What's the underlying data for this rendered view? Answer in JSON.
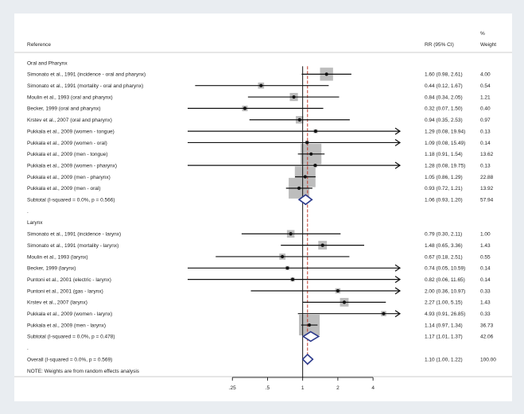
{
  "chart_data": {
    "type": "forest",
    "header": {
      "reference": "Reference",
      "rr": "RR (95% CI)",
      "pct": "%",
      "weight": "Weight"
    },
    "x_ticks": [
      ".25",
      ".5",
      "1",
      "2",
      "4"
    ],
    "x_tick_values": [
      0.25,
      0.5,
      1,
      2,
      4
    ],
    "x_range": [
      0.125,
      6
    ],
    "null_value": 1,
    "overall_rr": 1.1,
    "rows": [
      {
        "kind": "group",
        "label": "Oral and Pharynx"
      },
      {
        "kind": "study",
        "label": "Simonato et al., 1991 (incidence - oral and pharynx)",
        "rr": 1.6,
        "lo": 0.98,
        "hi": 2.61,
        "ci": "1.60 (0.98, 2.61)",
        "weight": "4.00",
        "w": 4.0
      },
      {
        "kind": "study",
        "label": "Simonato et al., 1991 (mortality - oral and pharynx)",
        "rr": 0.44,
        "lo": 0.12,
        "hi": 1.67,
        "ci": "0.44 (0.12, 1.67)",
        "weight": "0.54",
        "w": 0.54
      },
      {
        "kind": "study",
        "label": "Moulin et al., 1993 (oral and pharynx)",
        "rr": 0.84,
        "lo": 0.34,
        "hi": 2.05,
        "ci": "0.84 (0.34, 2.05)",
        "weight": "1.21",
        "w": 1.21
      },
      {
        "kind": "study",
        "label": "Becker, 1999 (oral and pharynx)",
        "rr": 0.32,
        "lo": 0.07,
        "hi": 1.5,
        "ci": "0.32 (0.07, 1.50)",
        "weight": "0.40",
        "w": 0.4
      },
      {
        "kind": "study",
        "label": "Krstev et al., 2007 (oral and pharynx)",
        "rr": 0.94,
        "lo": 0.35,
        "hi": 2.53,
        "ci": "0.94 (0.35, 2.53)",
        "weight": "0.97",
        "w": 0.97
      },
      {
        "kind": "study",
        "label": "Pukkala et al., 2009 (women - tongue)",
        "rr": 1.29,
        "lo": 0.08,
        "hi": 19.94,
        "ci": "1.29 (0.08, 19.94)",
        "weight": "0.13",
        "w": 0.13
      },
      {
        "kind": "study",
        "label": "Pukkala et al., 2009 (women - oral)",
        "rr": 1.09,
        "lo": 0.08,
        "hi": 15.49,
        "ci": "1.09 (0.08, 15.49)",
        "weight": "0.14",
        "w": 0.14
      },
      {
        "kind": "study",
        "label": "Pukkala et al., 2009 (men - tongue)",
        "rr": 1.18,
        "lo": 0.91,
        "hi": 1.54,
        "ci": "1.18 (0.91, 1.54)",
        "weight": "13.62",
        "w": 13.62
      },
      {
        "kind": "study",
        "label": "Pukkala et al., 2009 (women - pharynx)",
        "rr": 1.28,
        "lo": 0.08,
        "hi": 19.75,
        "ci": "1.28 (0.08, 19.75)",
        "weight": "0.13",
        "w": 0.13
      },
      {
        "kind": "study",
        "label": "Pukkala et al., 2009 (men - pharynx)",
        "rr": 1.05,
        "lo": 0.86,
        "hi": 1.29,
        "ci": "1.05 (0.86, 1.29)",
        "weight": "22.88",
        "w": 22.88
      },
      {
        "kind": "study",
        "label": "Pukkala et al., 2009 (men - oral)",
        "rr": 0.93,
        "lo": 0.72,
        "hi": 1.21,
        "ci": "0.93 (0.72, 1.21)",
        "weight": "13.92",
        "w": 13.92
      },
      {
        "kind": "subtotal",
        "label": "Subtotal  (I-squared = 0.0%, p = 0.566)",
        "rr": 1.06,
        "lo": 0.93,
        "hi": 1.2,
        "ci": "1.06 (0.93, 1.20)",
        "weight": "57.94"
      },
      {
        "kind": "dot",
        "label": "."
      },
      {
        "kind": "group",
        "label": "Larynx"
      },
      {
        "kind": "study",
        "label": "Simonato et al., 1991 (incidence - larynx)",
        "rr": 0.79,
        "lo": 0.3,
        "hi": 2.11,
        "ci": "0.79 (0.30, 2.11)",
        "weight": "1.00",
        "w": 1.0
      },
      {
        "kind": "study",
        "label": "Simonato et al., 1991 (mortality - larynx)",
        "rr": 1.48,
        "lo": 0.65,
        "hi": 3.36,
        "ci": "1.48 (0.65, 3.36)",
        "weight": "1.43",
        "w": 1.43
      },
      {
        "kind": "study",
        "label": "Moulin et al., 1993 (larynx)",
        "rr": 0.67,
        "lo": 0.18,
        "hi": 2.51,
        "ci": "0.67 (0.18, 2.51)",
        "weight": "0.55",
        "w": 0.55
      },
      {
        "kind": "study",
        "label": "Becker, 1999 (larynx)",
        "rr": 0.74,
        "lo": 0.05,
        "hi": 10.59,
        "ci": "0.74 (0.05, 10.59)",
        "weight": "0.14",
        "w": 0.14
      },
      {
        "kind": "study",
        "label": "Puntoni et al., 2001 (electric - larynx)",
        "rr": 0.82,
        "lo": 0.06,
        "hi": 11.65,
        "ci": "0.82 (0.06, 11.65)",
        "weight": "0.14",
        "w": 0.14
      },
      {
        "kind": "study",
        "label": "Puntoni et al., 2001 (gas - larynx)",
        "rr": 2.0,
        "lo": 0.36,
        "hi": 10.97,
        "ci": "2.00 (0.36, 10.97)",
        "weight": "0.33",
        "w": 0.33
      },
      {
        "kind": "study",
        "label": "Krstev et al., 2007 (larynx)",
        "rr": 2.27,
        "lo": 1.0,
        "hi": 5.15,
        "ci": "2.27 (1.00, 5.15)",
        "weight": "1.43",
        "w": 1.43
      },
      {
        "kind": "study",
        "label": "Pukkala et al., 2009 (women - larynx)",
        "rr": 4.93,
        "lo": 0.91,
        "hi": 26.85,
        "ci": "4.93 (0.91, 26.85)",
        "weight": "0.33",
        "w": 0.33
      },
      {
        "kind": "study",
        "label": "Pukkala et al., 2009 (men - larynx)",
        "rr": 1.14,
        "lo": 0.97,
        "hi": 1.34,
        "ci": "1.14 (0.97, 1.34)",
        "weight": "36.73",
        "w": 36.73
      },
      {
        "kind": "subtotal",
        "label": "Subtotal  (I-squared = 0.0%, p = 0.478)",
        "rr": 1.17,
        "lo": 1.01,
        "hi": 1.37,
        "ci": "1.17 (1.01, 1.37)",
        "weight": "42.06"
      },
      {
        "kind": "dot",
        "label": "."
      },
      {
        "kind": "subtotal",
        "label": "Overall  (I-squared = 0.0%, p = 0.569)",
        "rr": 1.1,
        "lo": 1.0,
        "hi": 1.22,
        "ci": "1.10 (1.00, 1.22)",
        "weight": "100.00"
      },
      {
        "kind": "note",
        "label": "NOTE: Weights are from random effects analysis"
      }
    ]
  },
  "colors": {
    "background": "#e9edf1",
    "panel": "#ffffff",
    "weight_box": "#bdbdbd",
    "point": "#111111",
    "ci_line": "#111111",
    "null_line": "#000000",
    "overall_line": "#c0392b",
    "diamond": "#2c3a8c"
  }
}
